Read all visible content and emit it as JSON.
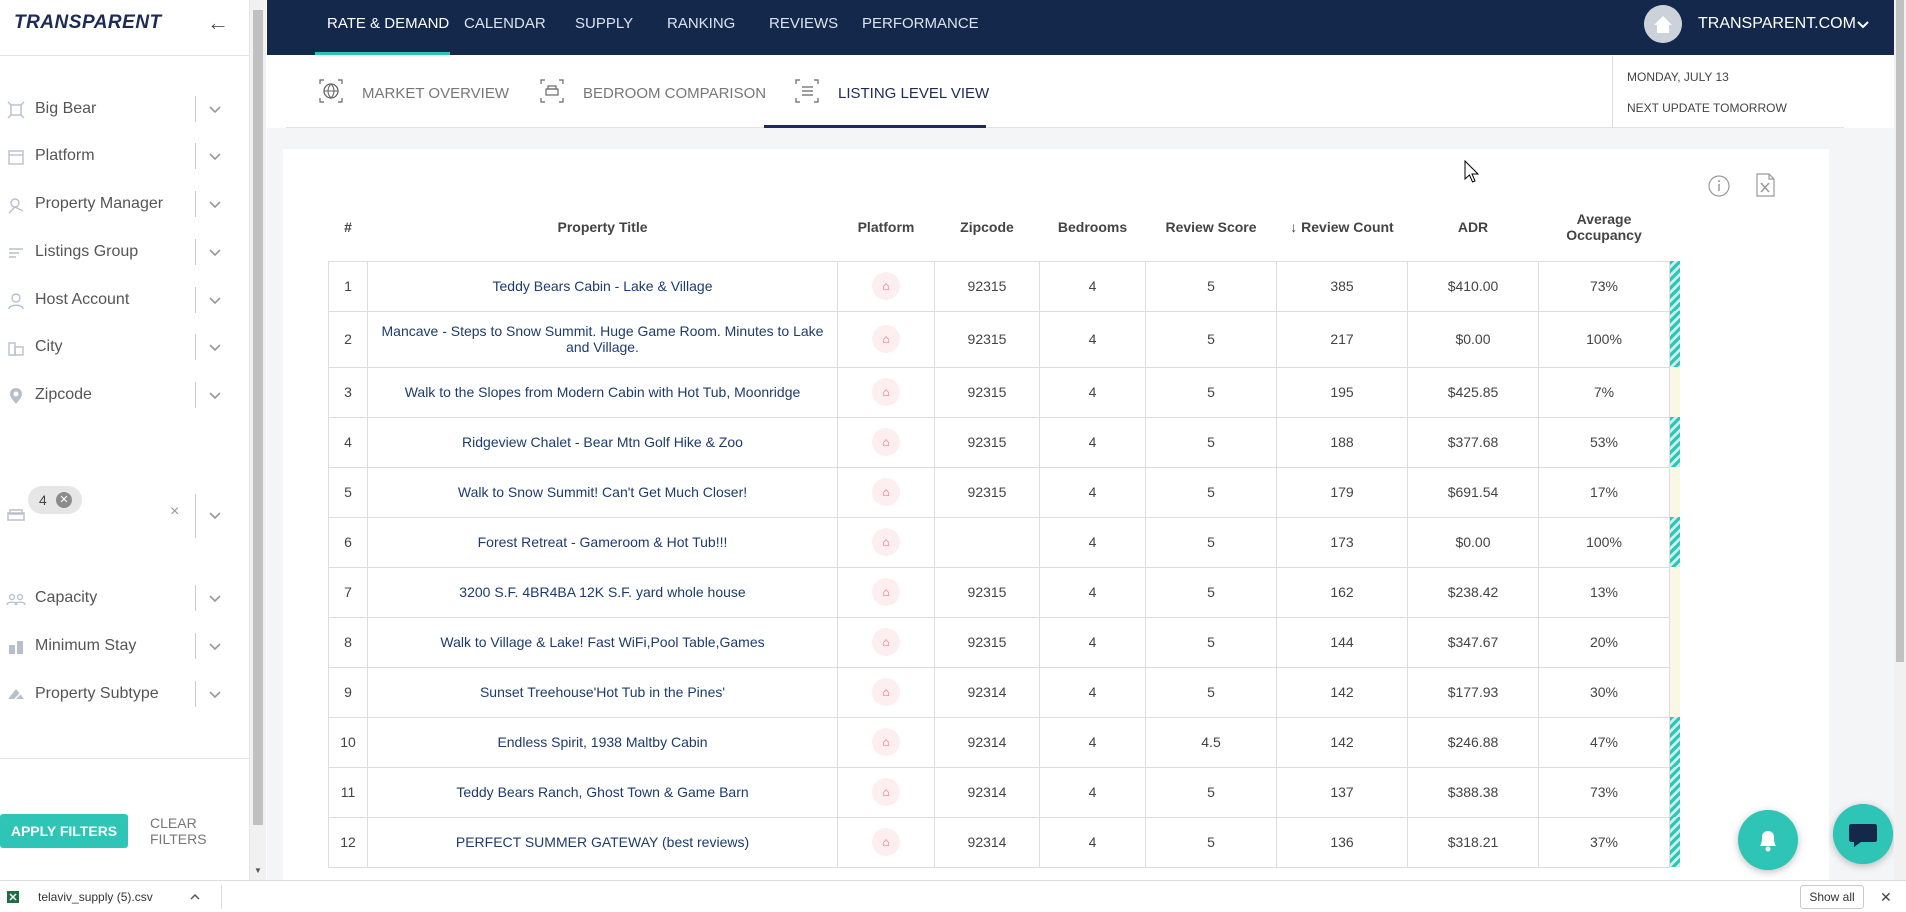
{
  "brand": {
    "logo": "TRANSPARENT",
    "account": "TRANSPARENT.COM",
    "accent": "#2ec4b6",
    "navy": "#13284b"
  },
  "nav": {
    "tabs": [
      {
        "label": "RATE & DEMAND",
        "active": true
      },
      {
        "label": "CALENDAR"
      },
      {
        "label": "SUPPLY"
      },
      {
        "label": "RANKING"
      },
      {
        "label": "REVIEWS"
      },
      {
        "label": "PERFORMANCE"
      }
    ]
  },
  "subtabs": [
    {
      "label": "MARKET OVERVIEW",
      "icon": "globe-icon"
    },
    {
      "label": "BEDROOM COMPARISON",
      "icon": "bed-icon"
    },
    {
      "label": "LISTING LEVEL VIEW",
      "icon": "list-icon",
      "active": true
    }
  ],
  "date": {
    "line1": "MONDAY, JULY 13",
    "line2": "NEXT UPDATE TOMORROW"
  },
  "filters": [
    {
      "label": "Big Bear",
      "icon": "market-icon"
    },
    {
      "label": "Platform",
      "icon": "platform-icon"
    },
    {
      "label": "Property Manager",
      "icon": "manager-icon"
    },
    {
      "label": "Listings Group",
      "icon": "group-icon"
    },
    {
      "label": "Host Account",
      "icon": "host-icon"
    },
    {
      "label": "City",
      "icon": "city-icon"
    },
    {
      "label": "Zipcode",
      "icon": "pin-icon"
    },
    {
      "label": "Capacity",
      "icon": "people-icon"
    },
    {
      "label": "Minimum Stay",
      "icon": "stay-icon"
    },
    {
      "label": "Property Subtype",
      "icon": "subtype-icon"
    }
  ],
  "bedroom_filter": {
    "chip": "4",
    "clear": "×"
  },
  "actions": {
    "apply": "APPLY FILTERS",
    "clear": "CLEAR FILTERS"
  },
  "table": {
    "columns": [
      "#",
      "Property Title",
      "Platform",
      "Zipcode",
      "Bedrooms",
      "Review Score",
      "↓ Review Count",
      "ADR",
      "Average Occupancy"
    ],
    "rows": [
      {
        "n": "1",
        "title": "Teddy Bears Cabin - Lake & Village",
        "zip": "92315",
        "beds": "4",
        "score": "5",
        "count": "385",
        "adr": "$410.00",
        "occ": "73%",
        "stripe": "hatch"
      },
      {
        "n": "2",
        "title": "Mancave - Steps to Snow Summit. Huge Game Room. Minutes to Lake and Village.",
        "zip": "92315",
        "beds": "4",
        "score": "5",
        "count": "217",
        "adr": "$0.00",
        "occ": "100%",
        "stripe": "hatch",
        "tall": true
      },
      {
        "n": "3",
        "title": "Walk to the Slopes from Modern Cabin with Hot Tub, Moonridge",
        "zip": "92315",
        "beds": "4",
        "score": "5",
        "count": "195",
        "adr": "$425.85",
        "occ": "7%",
        "stripe": "plain"
      },
      {
        "n": "4",
        "title": "Ridgeview Chalet - Bear Mtn Golf Hike & Zoo",
        "zip": "92315",
        "beds": "4",
        "score": "5",
        "count": "188",
        "adr": "$377.68",
        "occ": "53%",
        "stripe": "hatch"
      },
      {
        "n": "5",
        "title": "Walk to Snow Summit! Can't Get Much Closer!",
        "zip": "92315",
        "beds": "4",
        "score": "5",
        "count": "179",
        "adr": "$691.54",
        "occ": "17%",
        "stripe": "plain"
      },
      {
        "n": "6",
        "title": "Forest Retreat - Gameroom & Hot Tub!!!",
        "zip": "",
        "beds": "4",
        "score": "5",
        "count": "173",
        "adr": "$0.00",
        "occ": "100%",
        "stripe": "hatch"
      },
      {
        "n": "7",
        "title": "3200 S.F. 4BR4BA 12K S.F. yard whole house",
        "zip": "92315",
        "beds": "4",
        "score": "5",
        "count": "162",
        "adr": "$238.42",
        "occ": "13%",
        "stripe": "plain"
      },
      {
        "n": "8",
        "title": "Walk to Village & Lake! Fast WiFi,Pool Table,Games",
        "zip": "92315",
        "beds": "4",
        "score": "5",
        "count": "144",
        "adr": "$347.67",
        "occ": "20%",
        "stripe": "plain"
      },
      {
        "n": "9",
        "title": "Sunset Treehouse'Hot Tub in the Pines'",
        "zip": "92314",
        "beds": "4",
        "score": "5",
        "count": "142",
        "adr": "$177.93",
        "occ": "30%",
        "stripe": "plain"
      },
      {
        "n": "10",
        "title": "Endless Spirit, 1938 Maltby Cabin",
        "zip": "92314",
        "beds": "4",
        "score": "4.5",
        "count": "142",
        "adr": "$246.88",
        "occ": "47%",
        "stripe": "hatch"
      },
      {
        "n": "11",
        "title": "Teddy Bears Ranch, Ghost Town & Game Barn",
        "zip": "92314",
        "beds": "4",
        "score": "5",
        "count": "137",
        "adr": "$388.38",
        "occ": "73%",
        "stripe": "hatch"
      },
      {
        "n": "12",
        "title": "PERFECT SUMMER GATEWAY (best reviews)",
        "zip": "92314",
        "beds": "4",
        "score": "5",
        "count": "136",
        "adr": "$318.21",
        "occ": "37%",
        "stripe": "hatch"
      }
    ]
  },
  "download": {
    "file": "telaviv_supply (5).csv",
    "show_all": "Show all",
    "close": "✕"
  }
}
